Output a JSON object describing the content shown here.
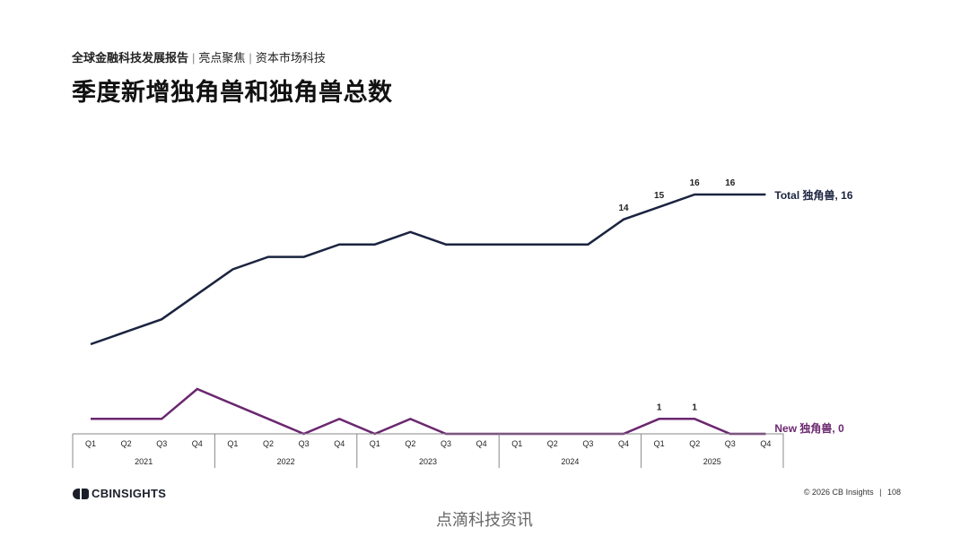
{
  "header": {
    "breadcrumb": {
      "report": "全球金融科技发展报告",
      "section": "亮点聚焦",
      "topic": "资本市场科技",
      "separator": "|"
    },
    "title": "季度新增独角兽和独角兽总数"
  },
  "chart_data": {
    "type": "line",
    "x": [
      "2021 Q1",
      "2021 Q2",
      "2021 Q3",
      "2021 Q4",
      "2022 Q1",
      "2022 Q2",
      "2022 Q3",
      "2022 Q4",
      "2023 Q1",
      "2023 Q2",
      "2023 Q3",
      "2023 Q4",
      "2024 Q1",
      "2024 Q2",
      "2024 Q3",
      "2024 Q4",
      "2025 Q1",
      "2025 Q2",
      "2025 Q3",
      "2025 Q4"
    ],
    "quarter_labels": [
      "Q1",
      "Q2",
      "Q3",
      "Q4",
      "Q1",
      "Q2",
      "Q3",
      "Q4",
      "Q1",
      "Q2",
      "Q3",
      "Q4",
      "Q1",
      "Q2",
      "Q3",
      "Q4",
      "Q1",
      "Q2",
      "Q3",
      "Q4"
    ],
    "years": [
      "2021",
      "2022",
      "2023",
      "2024",
      "2025"
    ],
    "series": [
      {
        "name": "Total 独角兽",
        "end_label": "Total 独角兽, 16",
        "color": "#1b2440",
        "values": [
          4,
          5,
          6,
          8,
          10,
          11,
          11,
          12,
          12,
          13,
          12,
          12,
          12,
          12,
          12,
          14,
          15,
          16,
          16,
          16
        ],
        "point_labels": {
          "15": "14",
          "16": "15",
          "17": "16",
          "18": "16"
        }
      },
      {
        "name": "New 独角兽",
        "end_label": "New 独角兽, 0",
        "color": "#6b2770",
        "values": [
          1,
          1,
          1,
          3,
          2,
          1,
          0,
          1,
          0,
          1,
          0,
          0,
          0,
          0,
          0,
          0,
          1,
          1,
          0,
          0
        ],
        "point_labels": {
          "16": "1",
          "17": "1"
        }
      }
    ],
    "colors": {
      "axis": "#888888",
      "tick_text": "#222222"
    }
  },
  "footer": {
    "logo": "CBINSIGHTS",
    "copyright": "© 2026 CB Insights",
    "page_number": "108"
  },
  "watermark": "点滴科技资讯"
}
